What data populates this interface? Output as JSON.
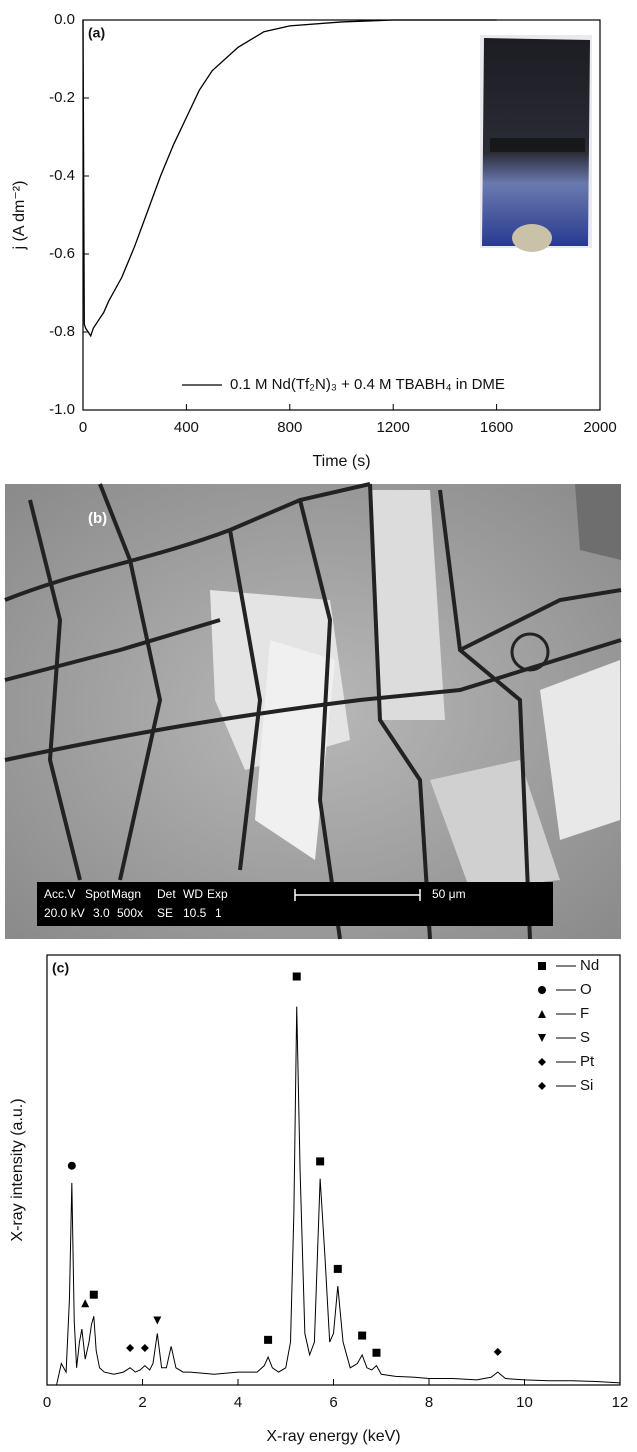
{
  "chart_data": [
    {
      "type": "line",
      "xlabel": "Time (s)",
      "ylabel": "j (A dm⁻²)",
      "annotations": [
        "(a)"
      ],
      "xlim": [
        0,
        2000
      ],
      "xticks": [
        0,
        400,
        800,
        1200,
        1600,
        2000
      ],
      "ylim": [
        -1,
        0
      ],
      "yticks": [
        {
          "value": -1,
          "label": "-1.0"
        },
        -0.8,
        -0.6,
        -0.4,
        -0.2,
        {
          "value": 0,
          "label": "0.0"
        }
      ],
      "legend": "lower right",
      "x": [
        0,
        5,
        10,
        20,
        30,
        40,
        60,
        80,
        100,
        150,
        200,
        250,
        300,
        350,
        400,
        450,
        500,
        600,
        700,
        800,
        1000,
        1200,
        1400,
        1600
      ],
      "series": [
        {
          "name": "0.1 M Nd(Tf₂N)₃ + 0.4 M TBABH₄ in DME",
          "color": "#000000",
          "values": [
            0,
            -0.78,
            -0.79,
            -0.8,
            -0.81,
            -0.79,
            -0.77,
            -0.75,
            -0.72,
            -0.66,
            -0.58,
            -0.49,
            -0.4,
            -0.32,
            -0.25,
            -0.18,
            -0.13,
            -0.07,
            -0.03,
            -0.015,
            -0.005,
            0,
            0,
            0
          ]
        }
      ]
    },
    {
      "type": "scatter",
      "xlabel": "X-ray energy (keV)",
      "ylabel": "X-ray intensity (a.u.)",
      "annotations": [
        "(c)"
      ],
      "xlim": [
        0,
        12
      ],
      "xticks": [
        0,
        2,
        4,
        6,
        8,
        10,
        12
      ],
      "ylim": [
        0,
        1
      ],
      "legend": "upper right",
      "line_color": "#000000",
      "x": [
        0.2,
        0.3,
        0.4,
        0.47,
        0.52,
        0.57,
        0.62,
        0.68,
        0.73,
        0.8,
        0.88,
        0.93,
        0.98,
        1.03,
        1.1,
        1.2,
        1.4,
        1.6,
        1.74,
        1.85,
        1.95,
        2.05,
        2.15,
        2.22,
        2.31,
        2.4,
        2.5,
        2.6,
        2.7,
        2.85,
        3.0,
        3.5,
        4.0,
        4.4,
        4.55,
        4.63,
        4.72,
        4.85,
        5.0,
        5.1,
        5.17,
        5.23,
        5.3,
        5.4,
        5.5,
        5.6,
        5.72,
        5.82,
        5.92,
        6.0,
        6.09,
        6.2,
        6.35,
        6.5,
        6.6,
        6.7,
        6.8,
        6.9,
        7.0,
        7.3,
        7.7,
        8.0,
        8.5,
        9.0,
        9.3,
        9.44,
        9.6,
        10.0,
        10.5,
        11.0,
        11.5,
        12.0
      ],
      "values": [
        0.0,
        0.05,
        0.03,
        0.2,
        0.47,
        0.15,
        0.04,
        0.1,
        0.13,
        0.06,
        0.1,
        0.14,
        0.16,
        0.08,
        0.04,
        0.03,
        0.025,
        0.03,
        0.04,
        0.03,
        0.035,
        0.045,
        0.035,
        0.05,
        0.12,
        0.04,
        0.04,
        0.09,
        0.04,
        0.03,
        0.03,
        0.025,
        0.03,
        0.03,
        0.045,
        0.065,
        0.04,
        0.03,
        0.04,
        0.1,
        0.4,
        0.88,
        0.5,
        0.12,
        0.07,
        0.1,
        0.48,
        0.3,
        0.1,
        0.12,
        0.23,
        0.1,
        0.04,
        0.05,
        0.07,
        0.04,
        0.035,
        0.045,
        0.025,
        0.02,
        0.018,
        0.015,
        0.015,
        0.012,
        0.018,
        0.03,
        0.015,
        0.012,
        0.01,
        0.01,
        0.008,
        0.005
      ],
      "series": [
        {
          "name": "Nd",
          "marker": "square",
          "color": "#000000",
          "x": [
            0.98,
            4.63,
            5.23,
            5.72,
            6.09,
            6.6,
            6.9
          ],
          "values": [
            0.21,
            0.105,
            0.95,
            0.52,
            0.27,
            0.115,
            0.075
          ]
        },
        {
          "name": "O",
          "marker": "circle",
          "color": "#000000",
          "x": [
            0.52
          ],
          "values": [
            0.51
          ]
        },
        {
          "name": "F",
          "marker": "triangle-up",
          "color": "#000000",
          "x": [
            0.8
          ],
          "values": [
            0.19
          ]
        },
        {
          "name": "S",
          "marker": "triangle-down",
          "color": "#000000",
          "x": [
            2.31
          ],
          "values": [
            0.15
          ]
        },
        {
          "name": "Pt",
          "marker": "diamond",
          "color": "#000000",
          "x": [
            2.05,
            9.44
          ],
          "values": [
            0.086,
            0.077
          ]
        },
        {
          "name": "Si",
          "marker": "diamond",
          "color": "#000000",
          "x": [
            1.74
          ],
          "values": [
            0.086
          ]
        }
      ]
    }
  ],
  "micrograph": {
    "label": "(b)",
    "info_header": [
      "Acc.V",
      "Spot",
      "Magn",
      "Det",
      "WD",
      "Exp"
    ],
    "info_values": [
      "20.0 kV",
      "3.0",
      "500x",
      "SE",
      "10.5",
      "1"
    ],
    "scale_bar": "50 μm"
  }
}
